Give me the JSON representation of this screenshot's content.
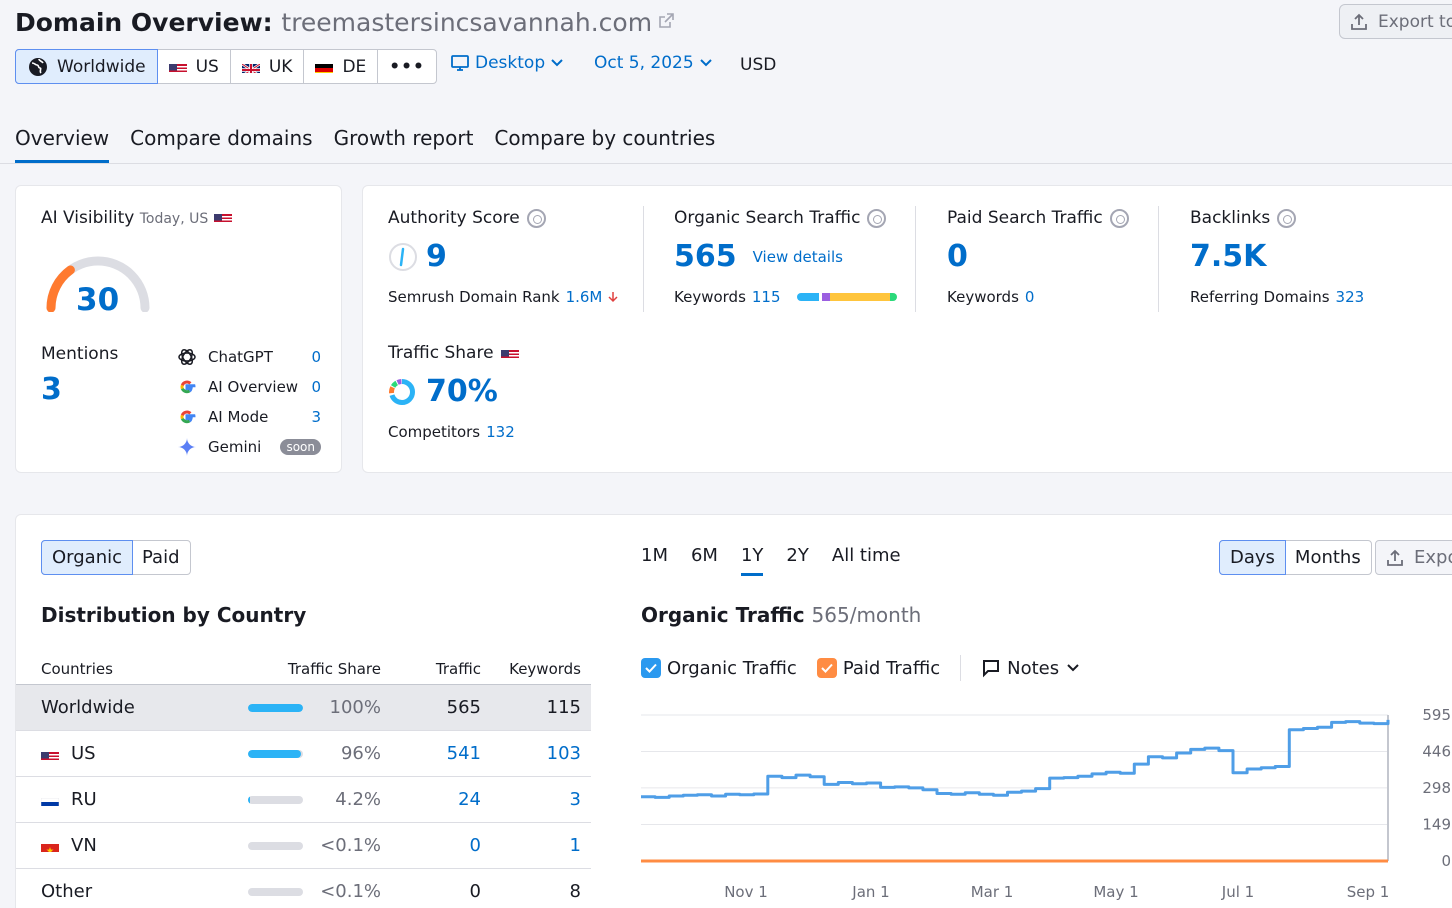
{
  "header": {
    "title_prefix": "Domain Overview:",
    "domain": "treemastersincsavannah.com",
    "export_label": "Export to"
  },
  "regions": [
    {
      "label": "Worldwide",
      "active": true
    },
    {
      "label": "US"
    },
    {
      "label": "UK"
    },
    {
      "label": "DE"
    },
    {
      "label": "•••"
    }
  ],
  "filters": {
    "device": "Desktop",
    "date": "Oct 5, 2025",
    "currency": "USD"
  },
  "tabs": [
    "Overview",
    "Compare domains",
    "Growth report",
    "Compare by countries"
  ],
  "ai_visibility": {
    "title": "AI Visibility",
    "subtitle": "Today, US",
    "score": "30",
    "score_value": 30,
    "mentions_label": "Mentions",
    "mentions": "3",
    "sources": [
      {
        "name": "ChatGPT",
        "value": "0"
      },
      {
        "name": "AI Overview",
        "value": "0"
      },
      {
        "name": "AI Mode",
        "value": "3"
      },
      {
        "name": "Gemini",
        "value": "soon"
      }
    ]
  },
  "metrics": {
    "authority": {
      "label": "Authority Score",
      "value": "9",
      "sub_label": "Semrush Domain Rank",
      "sub_value": "1.6M"
    },
    "organic": {
      "label": "Organic Search Traffic",
      "value": "565",
      "link": "View details",
      "sub_label": "Keywords",
      "sub_value": "115"
    },
    "paid": {
      "label": "Paid Search Traffic",
      "value": "0",
      "sub_label": "Keywords",
      "sub_value": "0"
    },
    "backlinks": {
      "label": "Backlinks",
      "value": "7.5K",
      "sub_label": "Referring Domains",
      "sub_value": "323"
    },
    "traffic_share": {
      "label": "Traffic Share",
      "value": "70%",
      "sub_label": "Competitors",
      "sub_value": "132"
    }
  },
  "distribution": {
    "toggle": [
      "Organic",
      "Paid"
    ],
    "title": "Distribution by Country",
    "columns": [
      "Countries",
      "Traffic Share",
      "Traffic",
      "Keywords"
    ],
    "rows": [
      {
        "country": "Worldwide",
        "share": "100%",
        "share_value": 100,
        "traffic": "565",
        "keywords": "115"
      },
      {
        "country": "US",
        "share": "96%",
        "share_value": 96,
        "traffic": "541",
        "keywords": "103"
      },
      {
        "country": "RU",
        "share": "4.2%",
        "share_value": 4.2,
        "traffic": "24",
        "keywords": "3"
      },
      {
        "country": "VN",
        "share": "<0.1%",
        "share_value": 0,
        "traffic": "0",
        "keywords": "1"
      },
      {
        "country": "Other",
        "share": "<0.1%",
        "share_value": 0,
        "traffic": "0",
        "keywords": "8"
      }
    ]
  },
  "traffic_chart": {
    "periods": [
      "1M",
      "6M",
      "1Y",
      "2Y",
      "All time"
    ],
    "active_period": "1Y",
    "granularity": [
      "Days",
      "Months"
    ],
    "export_label": "Export",
    "title": "Organic Traffic",
    "subtitle": "565/month",
    "legend": [
      "Organic Traffic",
      "Paid Traffic",
      "Notes"
    ]
  },
  "chart_data": {
    "type": "line",
    "x_ticks": [
      "Nov 1",
      "Jan 1",
      "Mar 1",
      "May 1",
      "Jul 1",
      "Sep 1"
    ],
    "y_ticks": [
      "595",
      "446",
      "298",
      "149",
      "0"
    ],
    "ylim": [
      0,
      595
    ],
    "grid": true,
    "series": [
      {
        "name": "Organic Traffic",
        "color": "#4f9ee7",
        "values": [
          262,
          259,
          265,
          268,
          270,
          265,
          272,
          270,
          273,
          345,
          340,
          350,
          343,
          312,
          320,
          315,
          318,
          300,
          302,
          298,
          290,
          275,
          272,
          278,
          272,
          268,
          280,
          285,
          295,
          338,
          340,
          345,
          355,
          362,
          358,
          395,
          425,
          420,
          440,
          455,
          460,
          450,
          360,
          375,
          380,
          385,
          535,
          540,
          545,
          565,
          568,
          562,
          560,
          575
        ]
      },
      {
        "name": "Paid Traffic",
        "color": "#ff8c43",
        "values": [
          0,
          0,
          0,
          0,
          0,
          0,
          0,
          0,
          0,
          0,
          0,
          0,
          0,
          0,
          0,
          0,
          0,
          0,
          0,
          0,
          0,
          0,
          0,
          0,
          0,
          0,
          0,
          0,
          0,
          0,
          0,
          0,
          0,
          0,
          0,
          0,
          0,
          0,
          0,
          0,
          0,
          0,
          0,
          0,
          0,
          0,
          0,
          0,
          0,
          0,
          0,
          0,
          0,
          0
        ]
      }
    ]
  }
}
